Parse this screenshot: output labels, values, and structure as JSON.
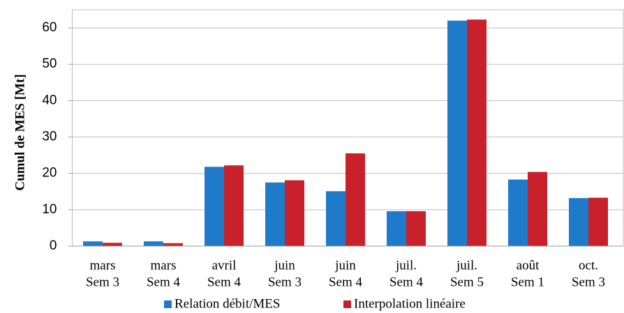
{
  "chart_data": {
    "type": "bar",
    "ylabel": "Cumul de MES [Mt]",
    "categories": [
      [
        "mars",
        "Sem 3"
      ],
      [
        "mars",
        "Sem 4"
      ],
      [
        "avril",
        "Sem 4"
      ],
      [
        "juin",
        "Sem 3"
      ],
      [
        "juin",
        "Sem 4"
      ],
      [
        "juil.",
        "Sem 4"
      ],
      [
        "juil.",
        "Sem 5"
      ],
      [
        "août",
        "Sem 1"
      ],
      [
        "oct.",
        "Sem 3"
      ]
    ],
    "series": [
      {
        "name": "Relation débit/MES",
        "color": "#1f7bc9",
        "values": [
          1.3,
          1.3,
          21.8,
          17.5,
          15.1,
          9.6,
          62,
          18.3,
          13.2
        ]
      },
      {
        "name": "Interpolation linéaire",
        "color": "#c9212b",
        "values": [
          0.9,
          0.8,
          22.2,
          18.1,
          25.5,
          9.6,
          62.3,
          20.4,
          13.3
        ]
      }
    ],
    "ylim": [
      0,
      65
    ],
    "yticks": [
      0,
      10,
      20,
      30,
      40,
      50,
      60
    ],
    "grid": true,
    "legend": "bottom"
  }
}
